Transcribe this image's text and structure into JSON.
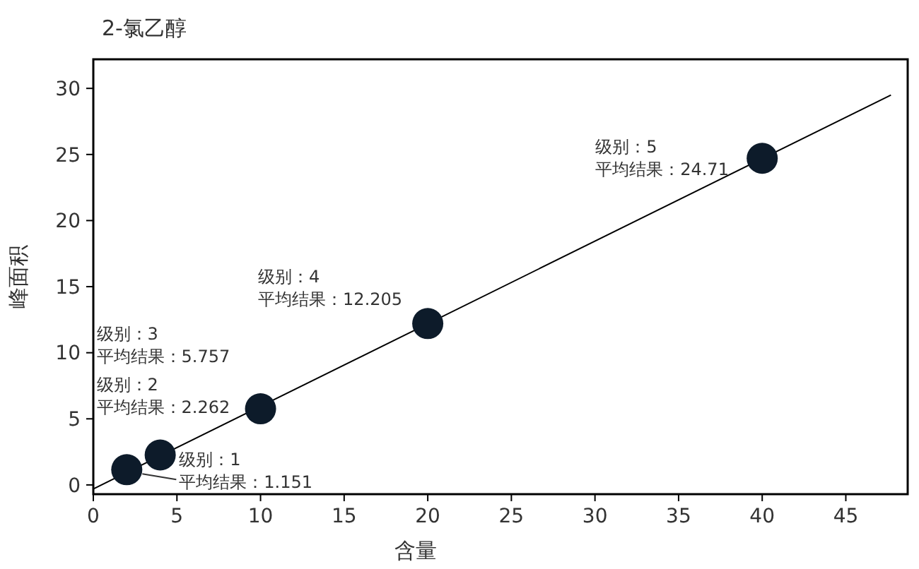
{
  "chart_data": {
    "type": "scatter",
    "title": "2-氯乙醇",
    "xlabel": "含量",
    "ylabel": "峰面积",
    "xlim": [
      0,
      48.7
    ],
    "xticks": [
      0,
      5,
      10,
      15,
      20,
      25,
      30,
      35,
      40,
      45
    ],
    "ylim": [
      -0.7,
      32.2
    ],
    "yticks": [
      0,
      5,
      10,
      15,
      20,
      25,
      30
    ],
    "grid": false,
    "series": [
      {
        "type": "line",
        "color": "#000000",
        "x": [
          0,
          47.7
        ],
        "values": [
          -0.3,
          29.5
        ],
        "marker": "none"
      },
      {
        "color": "#0d1b2a",
        "x": [
          2,
          4,
          10,
          20,
          40
        ],
        "values": [
          1.151,
          2.262,
          5.757,
          12.205,
          24.71
        ],
        "marker": "circle",
        "value_labels": [
          "级别：1\n平均结果：1.151",
          "级别：2\n平均结果：2.262",
          "级别：3\n平均结果：5.757",
          "级别：4\n平均结果：12.205",
          "级别：5\n平均结果：24.71"
        ]
      }
    ]
  }
}
